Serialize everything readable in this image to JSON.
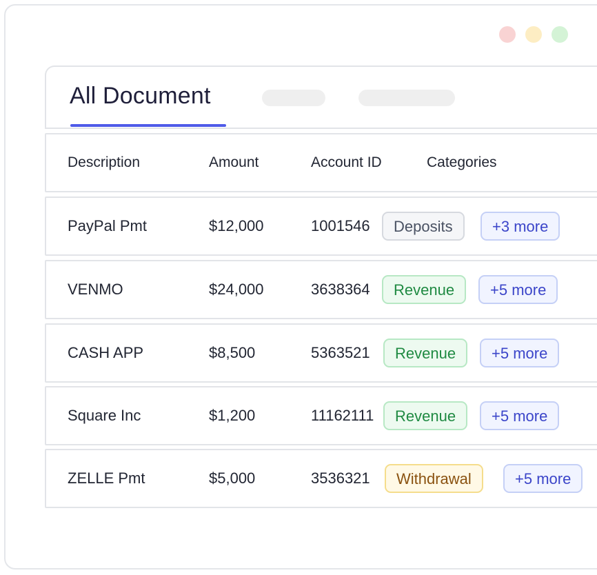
{
  "window": {
    "title": "All Document"
  },
  "table": {
    "headers": {
      "description": "Description",
      "amount": "Amount",
      "account_id": "Account ID",
      "categories": "Categories"
    },
    "rows": [
      {
        "description": "PayPal Pmt",
        "amount": "$12,000",
        "account_id": "1001546",
        "category": "Deposits",
        "category_type": "deposits",
        "more": "+3 more"
      },
      {
        "description": "VENMO",
        "amount": "$24,000",
        "account_id": "3638364",
        "category": "Revenue",
        "category_type": "revenue",
        "more": "+5 more"
      },
      {
        "description": "CASH APP",
        "amount": "$8,500",
        "account_id": "5363521",
        "category": "Revenue",
        "category_type": "revenue",
        "more": "+5 more"
      },
      {
        "description": "Square Inc",
        "amount": "$1,200",
        "account_id": "11162111",
        "category": "Revenue",
        "category_type": "revenue",
        "more": "+5 more"
      },
      {
        "description": "ZELLE Pmt",
        "amount": "$5,000",
        "account_id": "3536321",
        "category": "Withdrawal",
        "category_type": "withdrawal",
        "more": "+5 more"
      }
    ]
  },
  "colors": {
    "accent": "#4f5be8",
    "revenue": "#1f8a42",
    "withdrawal": "#8a5210",
    "deposits": "#4a5263",
    "more": "#3b45c9"
  }
}
